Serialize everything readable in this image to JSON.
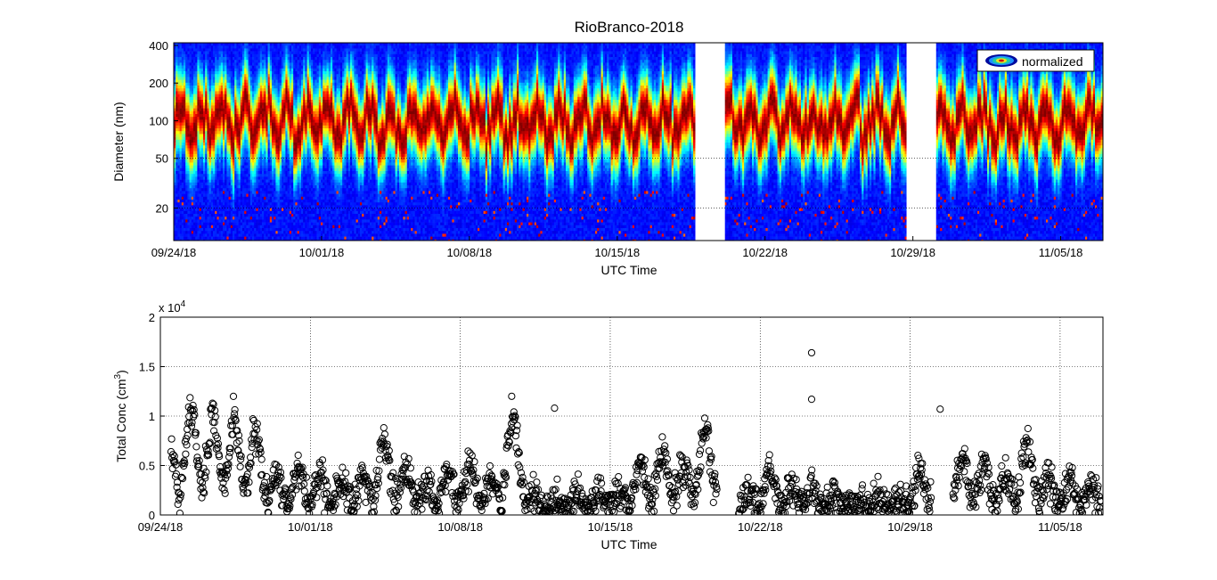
{
  "figure_title": "RioBranco-2018",
  "colors": {
    "axis": "#000000",
    "background": "#ffffff",
    "colormap": "jet",
    "markers": "#000000"
  },
  "chart_data": [
    {
      "type": "heatmap",
      "title": "RioBranco-2018",
      "xlabel": "UTC Time",
      "ylabel": "Diameter (nm)",
      "y_scale": "log",
      "ylim": [
        11,
        420
      ],
      "y_ticks": [
        20,
        50,
        100,
        200,
        400
      ],
      "x_tick_labels": [
        "09/24/18",
        "10/01/18",
        "10/08/18",
        "10/15/18",
        "10/22/18",
        "10/29/18",
        "11/05/18"
      ],
      "xlim": [
        "2018-09-24",
        "2018-11-07"
      ],
      "data_gaps": [
        [
          "2018-10-19",
          "2018-10-20"
        ],
        [
          "2018-10-29",
          "2018-10-30"
        ]
      ],
      "legend": {
        "entries": [
          "normalized"
        ],
        "placement": "top-right"
      },
      "color_scale": "jet (blue = low, red = high)",
      "mode_diameter_nm_typical": 100,
      "grid": false
    },
    {
      "type": "scatter",
      "xlabel": "UTC Time",
      "ylabel": "Total Conc (cm",
      "ylabel_superscript": "3",
      "ylabel_suffix": ")",
      "y_multiplier_label": "x 10",
      "y_multiplier_exponent": "4",
      "ylim": [
        0,
        20000
      ],
      "y_ticks": [
        0,
        5000,
        10000,
        15000,
        20000
      ],
      "y_tick_labels": [
        "0",
        "0.5",
        "1",
        "1.5",
        "2"
      ],
      "x_tick_labels": [
        "09/24/18",
        "10/01/18",
        "10/08/18",
        "10/15/18",
        "10/22/18",
        "10/29/18",
        "11/05/18"
      ],
      "xlim": [
        "2018-09-24",
        "2018-11-07"
      ],
      "marker": "open-circle",
      "grid": true,
      "series": [
        {
          "x": [
            "2018-09-24",
            "2018-09-25",
            "2018-09-26",
            "2018-09-27",
            "2018-09-28",
            "2018-09-29",
            "2018-09-30",
            "2018-10-01",
            "2018-10-02",
            "2018-10-03",
            "2018-10-04",
            "2018-10-05",
            "2018-10-06",
            "2018-10-07",
            "2018-10-08",
            "2018-10-09",
            "2018-10-10",
            "2018-10-11",
            "2018-10-12",
            "2018-10-13",
            "2018-10-14",
            "2018-10-15",
            "2018-10-16",
            "2018-10-17",
            "2018-10-18",
            "2018-10-19",
            "2018-10-21",
            "2018-10-22",
            "2018-10-23",
            "2018-10-24",
            "2018-10-25",
            "2018-10-26",
            "2018-10-27",
            "2018-10-28",
            "2018-10-29",
            "2018-10-31",
            "2018-11-01",
            "2018-11-02",
            "2018-11-03",
            "2018-11-04",
            "2018-11-05",
            "2018-11-06"
          ],
          "y": [
            4500,
            6800,
            6500,
            6300,
            5200,
            2600,
            3000,
            2500,
            2300,
            2600,
            4500,
            2700,
            2200,
            3000,
            3200,
            2200,
            6500,
            1400,
            1000,
            1500,
            1500,
            1700,
            3500,
            4200,
            3300,
            5500,
            1500,
            2900,
            1900,
            1700,
            1500,
            1200,
            1200,
            1300,
            3000,
            3800,
            3300,
            2600,
            4500,
            2400,
            2300,
            1600
          ]
        }
      ],
      "annotations": [
        {
          "x": "2018-10-10",
          "y": 12000
        },
        {
          "x": "2018-10-12",
          "y": 10800
        },
        {
          "x": "2018-10-24",
          "y": 16400
        },
        {
          "x": "2018-10-24",
          "y": 11700
        },
        {
          "x": "2018-10-30",
          "y": 10700
        }
      ]
    }
  ]
}
